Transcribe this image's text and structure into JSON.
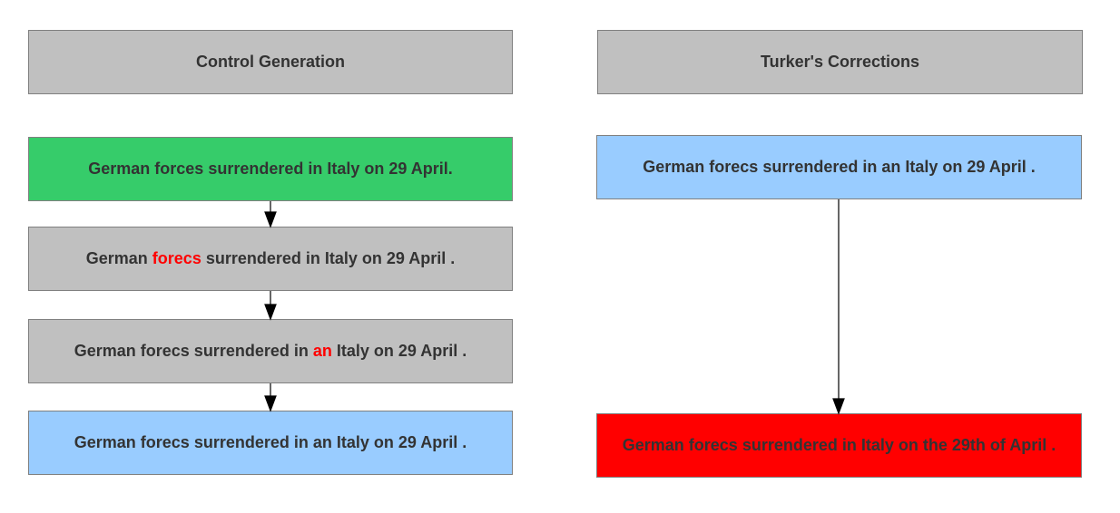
{
  "left_column": {
    "header": "Control Generation",
    "steps": [
      {
        "before": "German forces surrendered in Italy on 29 April.",
        "highlight": "",
        "after": ""
      },
      {
        "before": "German ",
        "highlight": "forecs",
        "after": " surrendered in Italy on 29 April ."
      },
      {
        "before": "German forecs surrendered in ",
        "highlight": "an",
        "after": " Italy on 29 April ."
      },
      {
        "before": "German forecs surrendered in an Italy on 29 April .",
        "highlight": "",
        "after": ""
      }
    ]
  },
  "right_column": {
    "header": "Turker's Corrections",
    "steps": [
      {
        "text": "German forecs surrendered in an Italy on 29 April ."
      },
      {
        "text": "German forecs surrendered in Italy on the 29th of April ."
      }
    ]
  },
  "colors": {
    "header_box": "#c0c0c0",
    "original_box": "#36cc6a",
    "step_box": "#c0c0c0",
    "final_box": "#99ccff",
    "correction_box": "#ff0000",
    "highlight_text": "#ff0000"
  }
}
